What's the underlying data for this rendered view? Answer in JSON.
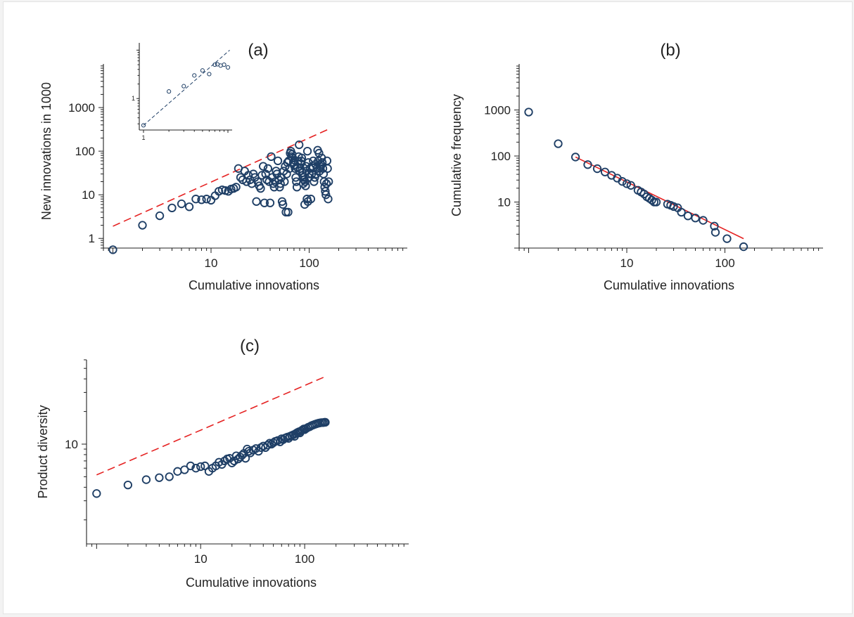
{
  "chart_data": [
    {
      "id": "a",
      "type": "scatter",
      "title": "(a)",
      "xlabel": "Cumulative innovations",
      "ylabel": "New innovations in 1000",
      "scale": "log-log",
      "xlim": [
        0.8,
        1000
      ],
      "ylim": [
        0.6,
        10000
      ],
      "x_ticks": [
        {
          "v": 10,
          "label": "10"
        },
        {
          "v": 100,
          "label": "100"
        }
      ],
      "y_ticks": [
        {
          "v": 1,
          "label": "1"
        },
        {
          "v": 10,
          "label": "10"
        },
        {
          "v": 100,
          "label": "100"
        },
        {
          "v": 1000,
          "label": "1000"
        }
      ],
      "marker_color": "#1f3f66",
      "fit_line": {
        "style": "dashed",
        "color": "#e52222",
        "points": [
          [
            1,
            1.9
          ],
          [
            158,
            320
          ]
        ]
      },
      "points": [
        [
          1,
          0.55
        ],
        [
          2,
          2
        ],
        [
          3,
          3.3
        ],
        [
          4,
          5
        ],
        [
          5,
          6.2
        ],
        [
          6,
          5.3
        ],
        [
          7,
          8
        ],
        [
          8,
          7.7
        ],
        [
          9,
          8
        ],
        [
          10,
          7.5
        ],
        [
          11,
          9.5
        ],
        [
          12,
          12
        ],
        [
          13,
          13
        ],
        [
          14,
          12.5
        ],
        [
          15,
          12
        ],
        [
          16,
          13.5
        ],
        [
          17,
          14
        ],
        [
          18,
          15
        ],
        [
          19,
          40
        ],
        [
          20,
          25
        ],
        [
          21,
          22
        ],
        [
          22,
          35
        ],
        [
          23,
          20
        ],
        [
          24,
          28
        ],
        [
          25,
          22
        ],
        [
          26,
          18
        ],
        [
          27,
          30
        ],
        [
          28,
          25
        ],
        [
          29,
          7
        ],
        [
          30,
          20
        ],
        [
          31,
          16
        ],
        [
          32,
          14
        ],
        [
          33,
          28
        ],
        [
          34,
          45
        ],
        [
          35,
          6.5
        ],
        [
          36,
          30
        ],
        [
          37,
          22
        ],
        [
          38,
          40
        ],
        [
          39,
          20
        ],
        [
          40,
          6.5
        ],
        [
          41,
          75
        ],
        [
          42,
          25
        ],
        [
          43,
          18
        ],
        [
          44,
          15
        ],
        [
          45,
          20
        ],
        [
          46,
          35
        ],
        [
          47,
          30
        ],
        [
          48,
          60
        ],
        [
          49,
          22
        ],
        [
          50,
          15
        ],
        [
          51,
          18
        ],
        [
          52,
          25
        ],
        [
          53,
          7
        ],
        [
          54,
          6
        ],
        [
          55,
          35
        ],
        [
          56,
          20
        ],
        [
          57,
          45
        ],
        [
          58,
          4
        ],
        [
          59,
          30
        ],
        [
          60,
          55
        ],
        [
          61,
          4
        ],
        [
          62,
          60
        ],
        [
          63,
          40
        ],
        [
          64,
          90
        ],
        [
          65,
          100
        ],
        [
          66,
          75
        ],
        [
          67,
          85
        ],
        [
          68,
          70
        ],
        [
          69,
          55
        ],
        [
          70,
          48
        ],
        [
          71,
          62
        ],
        [
          72,
          40
        ],
        [
          73,
          25
        ],
        [
          74,
          20
        ],
        [
          75,
          15
        ],
        [
          76,
          42
        ],
        [
          77,
          58
        ],
        [
          78,
          75
        ],
        [
          79,
          140
        ],
        [
          80,
          35
        ],
        [
          81,
          40
        ],
        [
          82,
          52
        ],
        [
          83,
          60
        ],
        [
          84,
          70
        ],
        [
          85,
          32
        ],
        [
          86,
          28
        ],
        [
          87,
          18
        ],
        [
          88,
          25
        ],
        [
          89,
          22
        ],
        [
          90,
          6
        ],
        [
          91,
          20
        ],
        [
          92,
          16
        ],
        [
          93,
          45
        ],
        [
          94,
          35
        ],
        [
          95,
          8
        ],
        [
          96,
          100
        ],
        [
          97,
          7
        ],
        [
          98,
          55
        ],
        [
          99,
          25
        ],
        [
          100,
          30
        ],
        [
          102,
          40
        ],
        [
          104,
          8
        ],
        [
          106,
          30
        ],
        [
          108,
          45
        ],
        [
          110,
          60
        ],
        [
          112,
          20
        ],
        [
          114,
          25
        ],
        [
          116,
          50
        ],
        [
          118,
          30
        ],
        [
          120,
          40
        ],
        [
          122,
          105
        ],
        [
          124,
          60
        ],
        [
          126,
          90
        ],
        [
          128,
          35
        ],
        [
          130,
          45
        ],
        [
          132,
          50
        ],
        [
          134,
          70
        ],
        [
          136,
          55
        ],
        [
          138,
          40
        ],
        [
          140,
          30
        ],
        [
          142,
          20
        ],
        [
          144,
          15
        ],
        [
          146,
          12
        ],
        [
          148,
          10
        ],
        [
          150,
          18
        ],
        [
          152,
          60
        ],
        [
          154,
          40
        ],
        [
          156,
          8
        ],
        [
          158,
          20
        ]
      ],
      "inset": {
        "x_tick_label": "1",
        "y_tick_label": "1",
        "fit_line": {
          "style": "dashed",
          "color": "#1f3f66"
        }
      }
    },
    {
      "id": "b",
      "type": "scatter",
      "title": "(b)",
      "xlabel": "Cumulative innovations",
      "ylabel": "Cumulative frequency",
      "scale": "log-log",
      "xlim": [
        0.8,
        1000
      ],
      "ylim": [
        1,
        10000
      ],
      "x_ticks": [
        {
          "v": 10,
          "label": "10"
        },
        {
          "v": 100,
          "label": "100"
        }
      ],
      "y_ticks": [
        {
          "v": 10,
          "label": "10"
        },
        {
          "v": 100,
          "label": "100"
        },
        {
          "v": 1000,
          "label": "1000"
        }
      ],
      "marker_color": "#1f3f66",
      "fit_line": {
        "style": "solid",
        "color": "#e52222",
        "points": [
          [
            3,
            95
          ],
          [
            155,
            1.6
          ]
        ]
      },
      "points": [
        [
          1,
          900
        ],
        [
          2,
          185
        ],
        [
          3,
          95
        ],
        [
          4,
          65
        ],
        [
          5,
          53
        ],
        [
          6,
          45
        ],
        [
          7,
          38
        ],
        [
          8,
          33
        ],
        [
          9,
          28
        ],
        [
          10,
          25
        ],
        [
          11,
          23
        ],
        [
          13,
          18
        ],
        [
          14,
          16.5
        ],
        [
          15,
          15
        ],
        [
          16,
          13
        ],
        [
          17,
          12
        ],
        [
          18,
          11
        ],
        [
          19,
          10
        ],
        [
          20,
          10
        ],
        [
          26,
          9
        ],
        [
          28,
          8.5
        ],
        [
          30,
          8
        ],
        [
          33,
          7.5
        ],
        [
          36,
          6
        ],
        [
          42,
          5
        ],
        [
          50,
          4.5
        ],
        [
          60,
          4
        ],
        [
          78,
          3
        ],
        [
          80,
          2.2
        ],
        [
          105,
          1.6
        ],
        [
          155,
          1.07
        ]
      ]
    },
    {
      "id": "c",
      "type": "scatter",
      "title": "(c)",
      "xlabel": "Cumulative innovations",
      "ylabel": "Product diversity",
      "scale": "log-log",
      "xlim": [
        0.8,
        1000
      ],
      "ylim": [
        1.2,
        60
      ],
      "x_ticks": [
        {
          "v": 10,
          "label": "10"
        },
        {
          "v": 100,
          "label": "100"
        }
      ],
      "y_ticks": [
        {
          "v": 10,
          "label": "10"
        }
      ],
      "marker_color": "#1f3f66",
      "fit_line": {
        "style": "dashed",
        "color": "#e52222",
        "points": [
          [
            1,
            5.2
          ],
          [
            158,
            42
          ]
        ]
      },
      "points": [
        [
          1,
          3.5
        ],
        [
          2,
          4.2
        ],
        [
          3,
          4.7
        ],
        [
          4,
          4.9
        ],
        [
          5,
          5
        ],
        [
          6,
          5.6
        ],
        [
          7,
          5.8
        ],
        [
          8,
          6.3
        ],
        [
          9,
          6
        ],
        [
          10,
          6.2
        ],
        [
          11,
          6.3
        ],
        [
          12,
          5.6
        ],
        [
          13,
          6
        ],
        [
          14,
          6.3
        ],
        [
          15,
          6.8
        ],
        [
          16,
          6.5
        ],
        [
          17,
          7
        ],
        [
          18,
          7.3
        ],
        [
          19,
          7.4
        ],
        [
          20,
          6.7
        ],
        [
          21,
          7
        ],
        [
          22,
          7.8
        ],
        [
          23,
          7.3
        ],
        [
          24,
          7.6
        ],
        [
          25,
          7.9
        ],
        [
          26,
          8.2
        ],
        [
          27,
          7.4
        ],
        [
          28,
          9
        ],
        [
          29,
          8.6
        ],
        [
          30,
          8.3
        ],
        [
          32,
          8.8
        ],
        [
          34,
          9.1
        ],
        [
          36,
          8.6
        ],
        [
          38,
          9.3
        ],
        [
          40,
          9.6
        ],
        [
          42,
          9.3
        ],
        [
          44,
          9.8
        ],
        [
          46,
          10.2
        ],
        [
          48,
          10
        ],
        [
          50,
          10.3
        ],
        [
          52,
          10.6
        ],
        [
          55,
          10.8
        ],
        [
          58,
          10.5
        ],
        [
          60,
          11.2
        ],
        [
          62,
          11
        ],
        [
          65,
          11.4
        ],
        [
          68,
          11.6
        ],
        [
          70,
          11.3
        ],
        [
          72,
          11.8
        ],
        [
          75,
          12
        ],
        [
          78,
          12.2
        ],
        [
          80,
          11.8
        ],
        [
          82,
          12.5
        ],
        [
          85,
          12.8
        ],
        [
          88,
          13
        ],
        [
          90,
          12.7
        ],
        [
          92,
          13.2
        ],
        [
          95,
          13.5
        ],
        [
          98,
          13.8
        ],
        [
          100,
          13.6
        ],
        [
          104,
          14
        ],
        [
          108,
          14.3
        ],
        [
          112,
          14.5
        ],
        [
          116,
          14.8
        ],
        [
          120,
          15
        ],
        [
          125,
          15.2
        ],
        [
          130,
          15.4
        ],
        [
          135,
          15.6
        ],
        [
          140,
          15.7
        ],
        [
          145,
          15.8
        ],
        [
          150,
          15.8
        ],
        [
          155,
          15.9
        ],
        [
          158,
          15.9
        ]
      ]
    }
  ]
}
